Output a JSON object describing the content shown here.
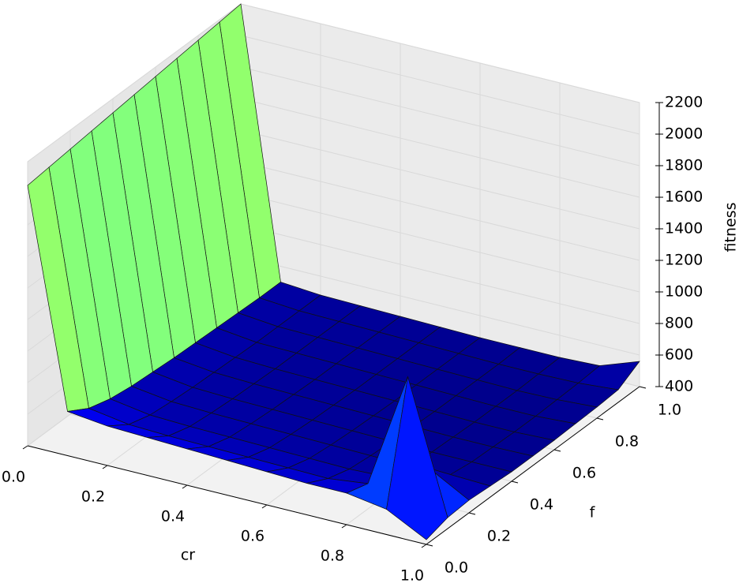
{
  "chart_data": {
    "type": "surface",
    "x_label": "cr",
    "y_label": "f",
    "z_label": "fitness",
    "x": [
      0,
      0.1,
      0.2,
      0.3,
      0.4,
      0.5,
      0.6,
      0.7,
      0.8,
      0.9,
      1
    ],
    "y": [
      0,
      0.1,
      0.2,
      0.3,
      0.4,
      0.5,
      0.6,
      0.7,
      0.8,
      0.9,
      1
    ],
    "z": [
      [
        2050,
        2065,
        2080,
        2095,
        2110,
        2125,
        2140,
        2155,
        2170,
        2185,
        2200
      ],
      [
        680,
        600,
        560,
        540,
        530,
        520,
        515,
        510,
        505,
        500,
        500
      ],
      [
        650,
        560,
        520,
        505,
        495,
        490,
        485,
        480,
        480,
        480,
        480
      ],
      [
        640,
        550,
        510,
        495,
        485,
        480,
        475,
        475,
        475,
        475,
        475
      ],
      [
        630,
        545,
        505,
        490,
        480,
        475,
        470,
        470,
        470,
        470,
        470
      ],
      [
        620,
        540,
        500,
        485,
        475,
        470,
        465,
        465,
        465,
        465,
        465
      ],
      [
        610,
        535,
        495,
        480,
        470,
        465,
        460,
        460,
        460,
        460,
        460
      ],
      [
        600,
        530,
        490,
        475,
        465,
        460,
        455,
        455,
        455,
        455,
        460
      ],
      [
        600,
        560,
        500,
        470,
        460,
        455,
        450,
        450,
        450,
        455,
        460
      ],
      [
        560,
        1300,
        620,
        480,
        460,
        455,
        450,
        450,
        455,
        460,
        470
      ],
      [
        430,
        470,
        480,
        470,
        460,
        460,
        460,
        465,
        470,
        480,
        560
      ]
    ],
    "xlim": [
      0,
      1
    ],
    "ylim": [
      0,
      1
    ],
    "zlim": [
      400,
      2200
    ],
    "xticks": [
      {
        "value": 0,
        "label": "0.0"
      },
      0.2,
      0.4,
      0.6,
      0.8,
      {
        "value": 1,
        "label": "1.0"
      }
    ],
    "yticks": [
      {
        "value": 0,
        "label": "0.0"
      },
      0.2,
      0.4,
      0.6,
      0.8,
      {
        "value": 1,
        "label": "1.0"
      }
    ],
    "zticks": [
      400,
      600,
      800,
      1000,
      1200,
      1400,
      1600,
      1800,
      2000,
      2200
    ],
    "colormap": "jet",
    "grid": true
  }
}
